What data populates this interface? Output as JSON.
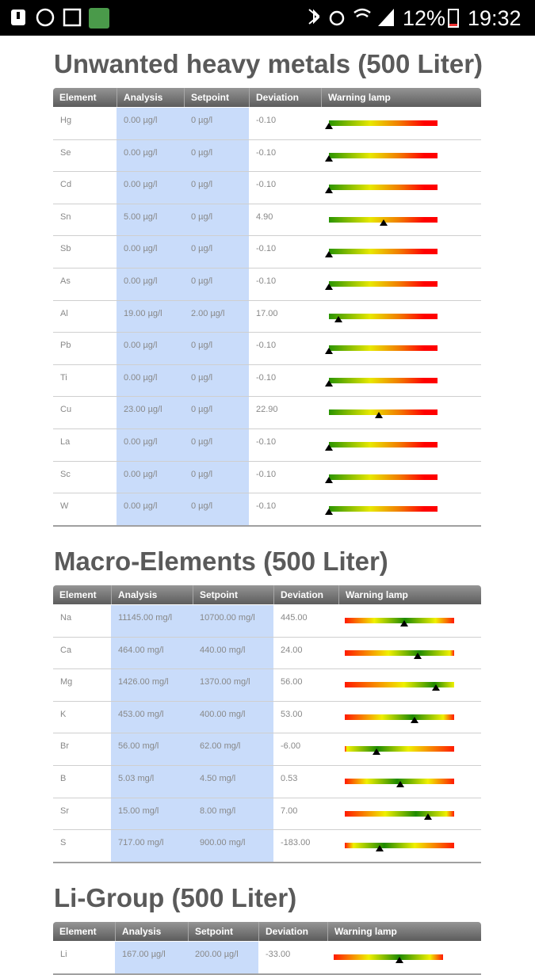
{
  "status_bar": {
    "battery": "12%",
    "time": "19:32"
  },
  "sections": [
    {
      "title": "Unwanted heavy metals (500 Liter)",
      "columns": [
        "Element",
        "Analysis",
        "Setpoint",
        "Deviation",
        "Warning lamp"
      ],
      "rows": [
        [
          "Hg",
          "0.00 µg/l",
          "0 µg/l",
          "-0.10"
        ],
        [
          "Se",
          "0.00 µg/l",
          "0 µg/l",
          "-0.10"
        ],
        [
          "Cd",
          "0.00 µg/l",
          "0 µg/l",
          "-0.10"
        ],
        [
          "Sn",
          "5.00 µg/l",
          "0 µg/l",
          "4.90"
        ],
        [
          "Sb",
          "0.00 µg/l",
          "0 µg/l",
          "-0.10"
        ],
        [
          "As",
          "0.00 µg/l",
          "0 µg/l",
          "-0.10"
        ],
        [
          "Al",
          "19.00 µg/l",
          "2.00 µg/l",
          "17.00"
        ],
        [
          "Pb",
          "0.00 µg/l",
          "0 µg/l",
          "-0.10"
        ],
        [
          "Ti",
          "0.00 µg/l",
          "0 µg/l",
          "-0.10"
        ],
        [
          "Cu",
          "23.00 µg/l",
          "0 µg/l",
          "22.90"
        ],
        [
          "La",
          "0.00 µg/l",
          "0 µg/l",
          "-0.10"
        ],
        [
          "Sc",
          "0.00 µg/l",
          "0 µg/l",
          "-0.10"
        ],
        [
          "W",
          "0.00 µg/l",
          "0 µg/l",
          "-0.10"
        ]
      ]
    },
    {
      "title": "Macro-Elements (500 Liter)",
      "columns": [
        "Element",
        "Analysis",
        "Setpoint",
        "Deviation",
        "Warning lamp"
      ],
      "rows": [
        [
          "Na",
          "11145.00 mg/l",
          "10700.00 mg/l",
          "445.00"
        ],
        [
          "Ca",
          "464.00 mg/l",
          "440.00 mg/l",
          "24.00"
        ],
        [
          "Mg",
          "1426.00 mg/l",
          "1370.00 mg/l",
          "56.00"
        ],
        [
          "K",
          "453.00 mg/l",
          "400.00 mg/l",
          "53.00"
        ],
        [
          "Br",
          "56.00 mg/l",
          "62.00 mg/l",
          "-6.00"
        ],
        [
          "B",
          "5.03 mg/l",
          "4.50 mg/l",
          "0.53"
        ],
        [
          "Sr",
          "15.00 mg/l",
          "8.00 mg/l",
          "7.00"
        ],
        [
          "S",
          "717.00 mg/l",
          "900.00 mg/l",
          "-183.00"
        ]
      ]
    },
    {
      "title": "Li-Group (500 Liter)",
      "columns": [
        "Element",
        "Analysis",
        "Setpoint",
        "Deviation",
        "Warning lamp"
      ],
      "rows": [
        [
          "Li",
          "167.00 µg/l",
          "200.00 µg/l",
          "-33.00"
        ]
      ]
    }
  ]
}
